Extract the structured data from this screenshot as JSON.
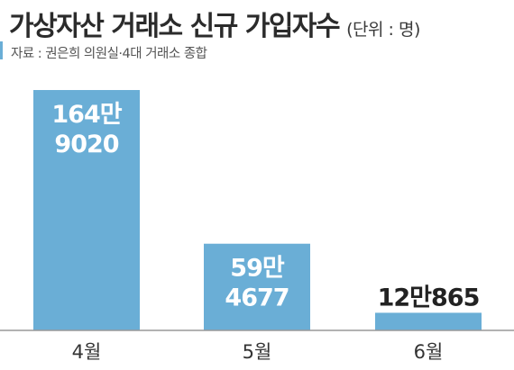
{
  "header": {
    "title": "가상자산 거래소 신규 가입자수",
    "unit": "(단위 : 명)",
    "source": "자료 : 권은희 의원실·4대 거래소 종합"
  },
  "colors": {
    "bar": "#6aaed6",
    "axis": "#999999"
  },
  "chart_data": {
    "type": "bar",
    "title": "가상자산 거래소 신규 가입자수",
    "unit": "(단위 : 명)",
    "categories": [
      "4월",
      "5월",
      "6월"
    ],
    "values": [
      1649020,
      594677,
      120865
    ],
    "data_labels": [
      [
        "164만",
        "9020"
      ],
      [
        "59만",
        "4677"
      ],
      [
        "12만865"
      ]
    ],
    "xlabel": "",
    "ylabel": "",
    "grid": false,
    "legend": "none"
  }
}
